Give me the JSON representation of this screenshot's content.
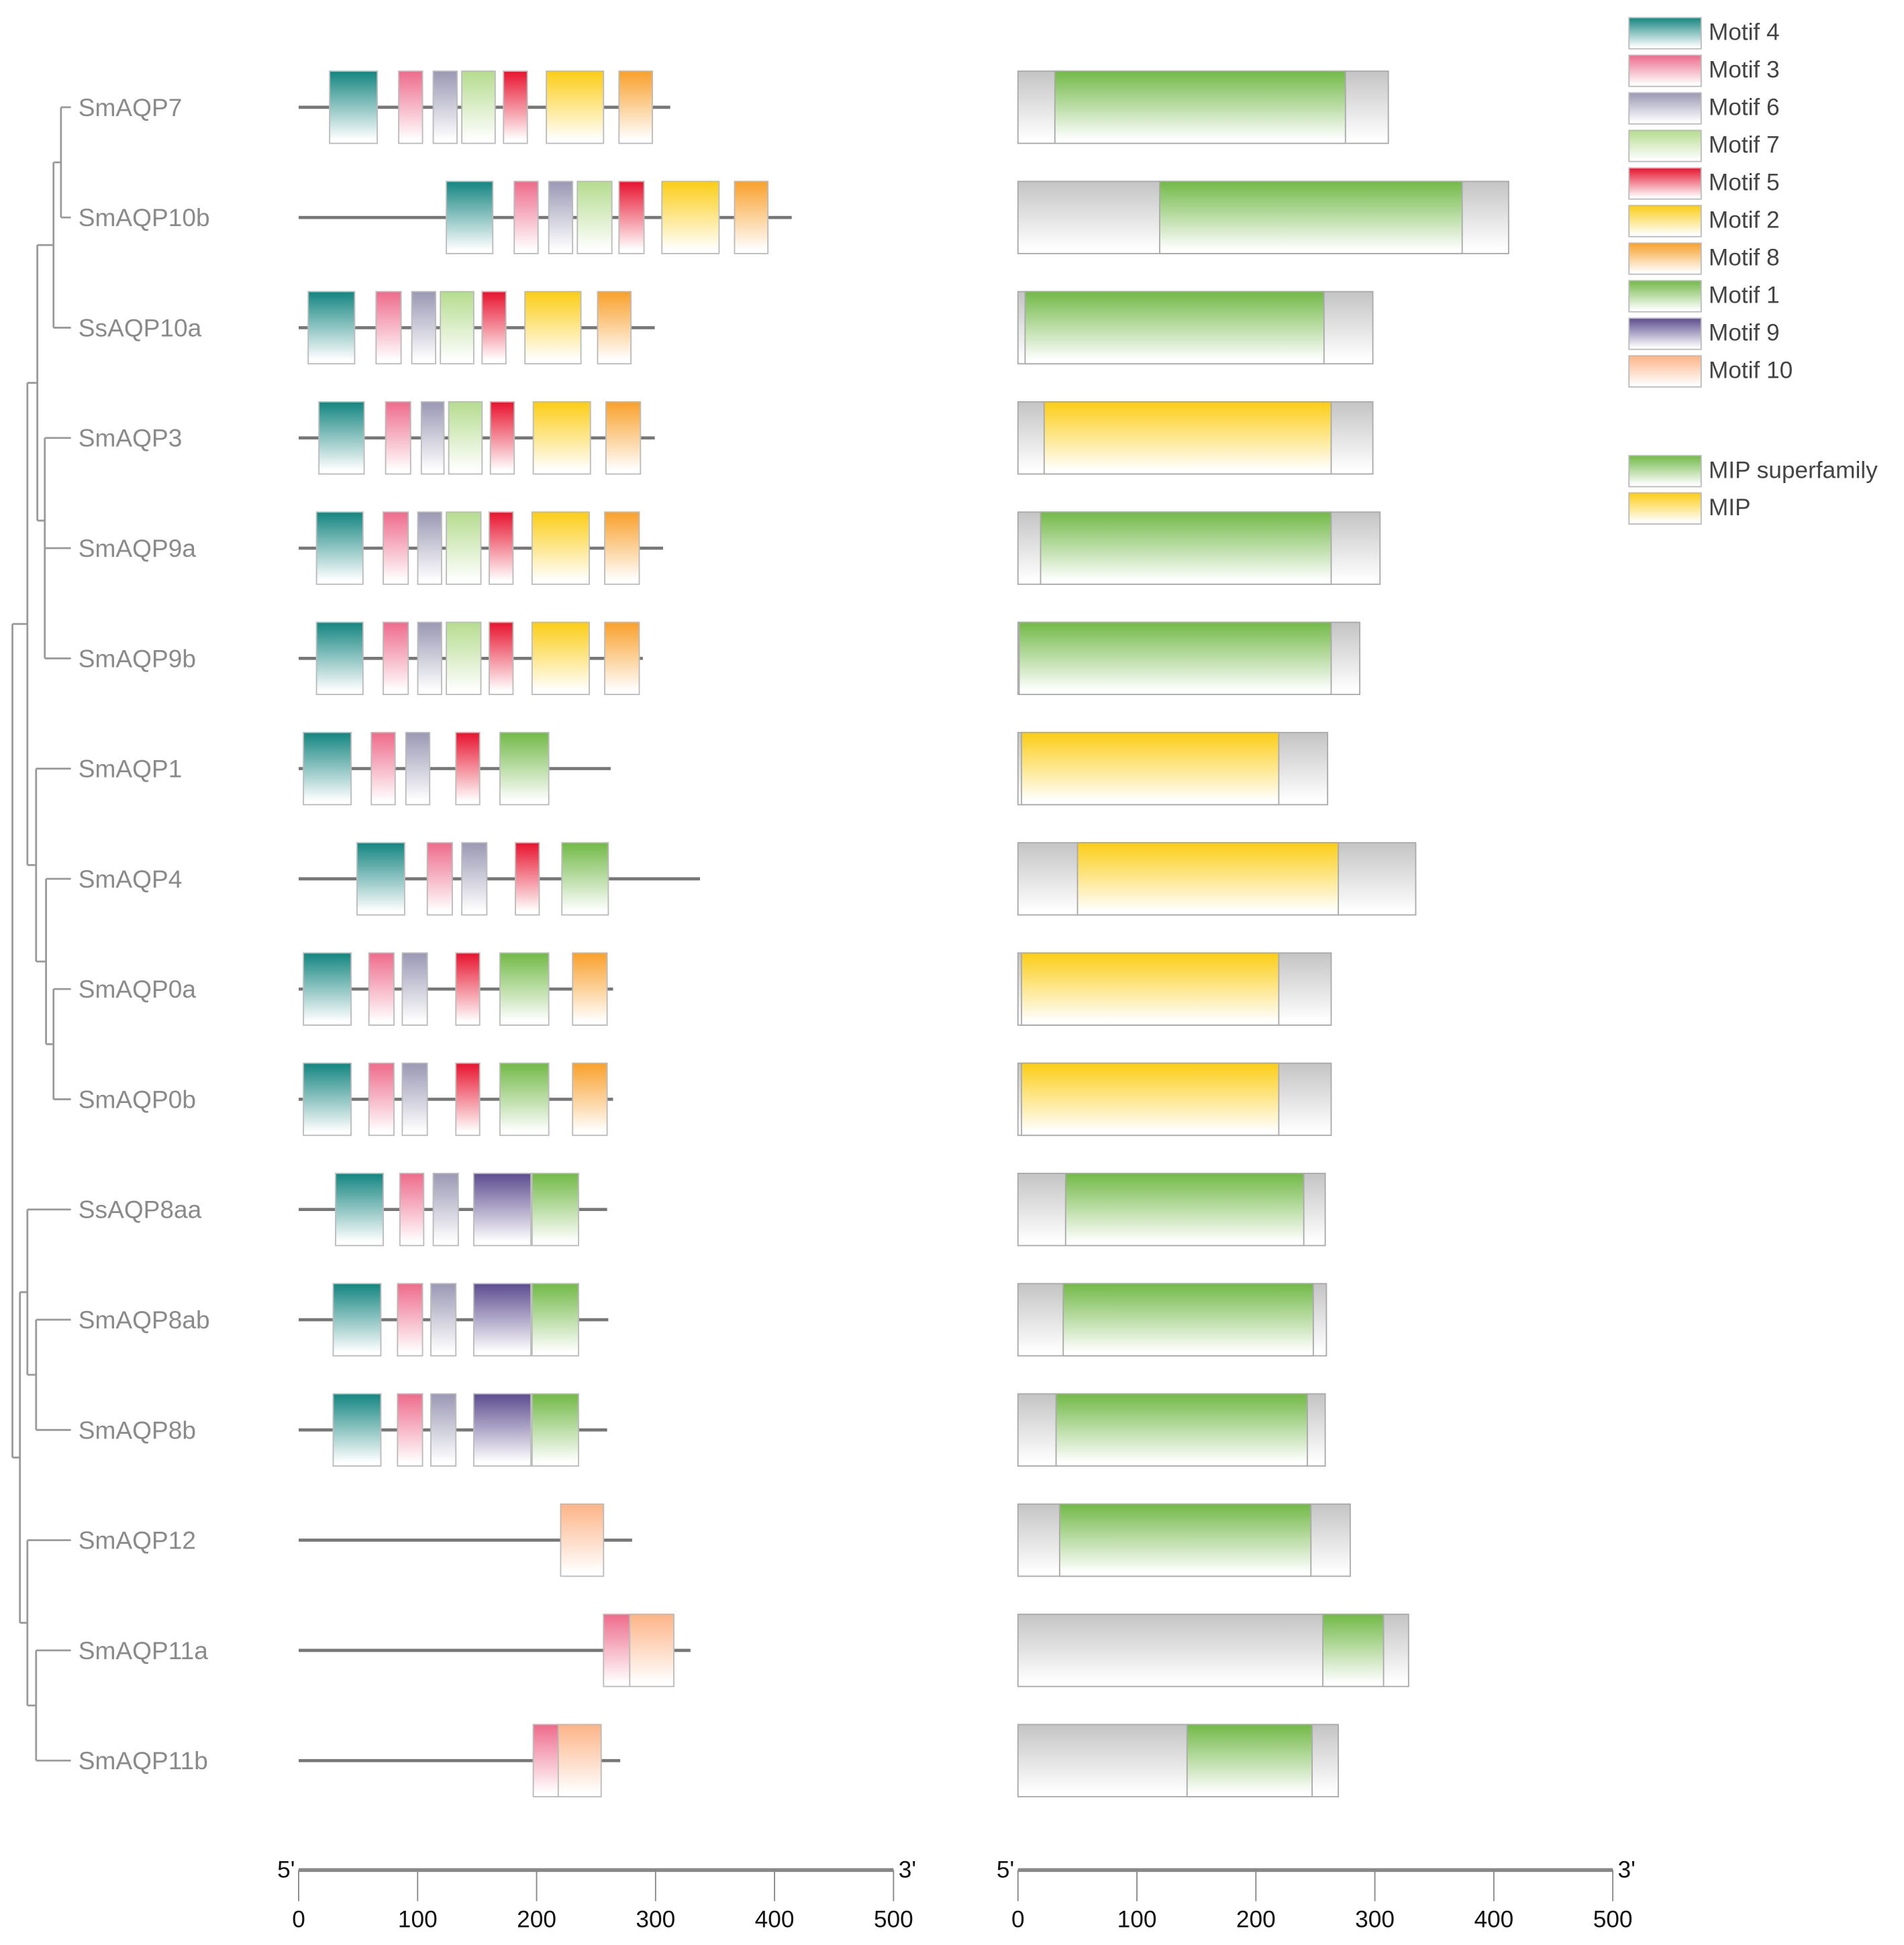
{
  "chart_data": {
    "type": "gene-structure",
    "panels": [
      {
        "name": "motif-panel",
        "axis": {
          "min": 0,
          "max": 500,
          "ticks": [
            0,
            100,
            200,
            300,
            400,
            500
          ],
          "start_label": "5'",
          "end_label": "3'"
        }
      },
      {
        "name": "domain-panel",
        "axis": {
          "min": 0,
          "max": 500,
          "ticks": [
            0,
            100,
            200,
            300,
            400,
            500
          ],
          "start_label": "5'",
          "end_label": "3'"
        }
      }
    ],
    "legend": {
      "motifs": [
        {
          "id": "M4",
          "label": "Motif 4",
          "color": "#138580"
        },
        {
          "id": "M3",
          "label": "Motif 3",
          "color": "#ee6b8b"
        },
        {
          "id": "M6",
          "label": "Motif 6",
          "color": "#9a98b4"
        },
        {
          "id": "M7",
          "label": "Motif 7",
          "color": "#b5dc8e"
        },
        {
          "id": "M5",
          "label": "Motif 5",
          "color": "#e8132e"
        },
        {
          "id": "M2",
          "label": "Motif 2",
          "color": "#fccd15"
        },
        {
          "id": "M8",
          "label": "Motif 8",
          "color": "#f9a02a"
        },
        {
          "id": "M1",
          "label": "Motif 1",
          "color": "#72b947"
        },
        {
          "id": "M9",
          "label": "Motif 9",
          "color": "#5c4c8f"
        },
        {
          "id": "M10",
          "label": "Motif 10",
          "color": "#fdb487"
        }
      ],
      "domains": [
        {
          "id": "SF",
          "label": "MIP superfamily",
          "color": "#72b947"
        },
        {
          "id": "MIP",
          "label": "MIP",
          "color": "#fccd15"
        }
      ]
    },
    "genes": [
      {
        "name": "SmAQP7",
        "length": 312,
        "motifs": [
          [
            "M4",
            26,
            66
          ],
          [
            "M3",
            84,
            104
          ],
          [
            "M6",
            113,
            133
          ],
          [
            "M7",
            137,
            165
          ],
          [
            "M5",
            172,
            192
          ],
          [
            "M2",
            208,
            256
          ],
          [
            "M8",
            269,
            297
          ]
        ],
        "protein_length": 311,
        "domains": [
          [
            "SF",
            31,
            275
          ]
        ]
      },
      {
        "name": "SmAQP10b",
        "length": 414,
        "motifs": [
          [
            "M4",
            124,
            163
          ],
          [
            "M3",
            181,
            201
          ],
          [
            "M6",
            210,
            230
          ],
          [
            "M7",
            234,
            263
          ],
          [
            "M5",
            269,
            290
          ],
          [
            "M2",
            305,
            353
          ],
          [
            "M8",
            366,
            394
          ]
        ],
        "protein_length": 412,
        "domains": [
          [
            "SF",
            119,
            373
          ]
        ]
      },
      {
        "name": "SsAQP10a",
        "length": 299,
        "motifs": [
          [
            "M4",
            8,
            47
          ],
          [
            "M3",
            65,
            86
          ],
          [
            "M6",
            95,
            115
          ],
          [
            "M7",
            119,
            147
          ],
          [
            "M5",
            154,
            174
          ],
          [
            "M2",
            190,
            237
          ],
          [
            "M8",
            251,
            279
          ]
        ],
        "protein_length": 298,
        "domains": [
          [
            "SF",
            6,
            257
          ]
        ]
      },
      {
        "name": "SmAQP3",
        "length": 299,
        "motifs": [
          [
            "M4",
            17,
            55
          ],
          [
            "M3",
            73,
            94
          ],
          [
            "M6",
            103,
            122
          ],
          [
            "M7",
            126,
            154
          ],
          [
            "M5",
            161,
            181
          ],
          [
            "M2",
            197,
            245
          ],
          [
            "M8",
            258,
            287
          ]
        ],
        "protein_length": 298,
        "domains": [
          [
            "MIP",
            22,
            263
          ]
        ]
      },
      {
        "name": "SmAQP9a",
        "length": 306,
        "motifs": [
          [
            "M4",
            15,
            54
          ],
          [
            "M3",
            71,
            92
          ],
          [
            "M6",
            100,
            120
          ],
          [
            "M7",
            124,
            153
          ],
          [
            "M5",
            160,
            180
          ],
          [
            "M2",
            196,
            244
          ],
          [
            "M8",
            257,
            286
          ]
        ],
        "protein_length": 304,
        "domains": [
          [
            "SF",
            19,
            263
          ]
        ]
      },
      {
        "name": "SmAQP9b",
        "length": 289,
        "motifs": [
          [
            "M4",
            15,
            54
          ],
          [
            "M3",
            71,
            92
          ],
          [
            "M6",
            100,
            120
          ],
          [
            "M7",
            124,
            153
          ],
          [
            "M5",
            160,
            180
          ],
          [
            "M2",
            196,
            244
          ],
          [
            "M8",
            257,
            286
          ]
        ],
        "protein_length": 287,
        "domains": [
          [
            "SF",
            1,
            263
          ]
        ]
      },
      {
        "name": "SmAQP1",
        "length": 262,
        "motifs": [
          [
            "M4",
            4,
            44
          ],
          [
            "M3",
            61,
            81
          ],
          [
            "M6",
            90,
            110
          ],
          [
            "M5",
            132,
            152
          ],
          [
            "M1",
            169,
            210
          ]
        ],
        "protein_length": 260,
        "domains": [
          [
            "MIP",
            3,
            219
          ]
        ]
      },
      {
        "name": "SmAQP4",
        "length": 337,
        "motifs": [
          [
            "M4",
            49,
            89
          ],
          [
            "M3",
            108,
            129
          ],
          [
            "M6",
            137,
            158
          ],
          [
            "M5",
            182,
            202
          ],
          [
            "M1",
            221,
            260
          ]
        ],
        "protein_length": 334,
        "domains": [
          [
            "MIP",
            50,
            269
          ]
        ]
      },
      {
        "name": "SmAQP0a",
        "length": 264,
        "motifs": [
          [
            "M4",
            4,
            44
          ],
          [
            "M3",
            59,
            80
          ],
          [
            "M6",
            87,
            108
          ],
          [
            "M5",
            132,
            152
          ],
          [
            "M1",
            169,
            210
          ],
          [
            "M8",
            230,
            259
          ]
        ],
        "protein_length": 263,
        "domains": [
          [
            "MIP",
            3,
            219
          ]
        ]
      },
      {
        "name": "SmAQP0b",
        "length": 264,
        "motifs": [
          [
            "M4",
            4,
            44
          ],
          [
            "M3",
            59,
            80
          ],
          [
            "M6",
            87,
            108
          ],
          [
            "M5",
            132,
            152
          ],
          [
            "M1",
            169,
            210
          ],
          [
            "M8",
            230,
            259
          ]
        ],
        "protein_length": 263,
        "domains": [
          [
            "MIP",
            3,
            219
          ]
        ]
      },
      {
        "name": "SsAQP8aa",
        "length": 259,
        "motifs": [
          [
            "M4",
            31,
            71
          ],
          [
            "M3",
            85,
            105
          ],
          [
            "M6",
            113,
            134
          ],
          [
            "M9",
            147,
            195
          ],
          [
            "M1",
            196,
            235
          ]
        ],
        "protein_length": 258,
        "domains": [
          [
            "SF",
            40,
            240
          ]
        ]
      },
      {
        "name": "SmAQP8ab",
        "length": 260,
        "motifs": [
          [
            "M4",
            29,
            69
          ],
          [
            "M3",
            83,
            104
          ],
          [
            "M6",
            111,
            132
          ],
          [
            "M9",
            147,
            195
          ],
          [
            "M1",
            196,
            235
          ]
        ],
        "protein_length": 259,
        "domains": [
          [
            "SF",
            38,
            248
          ]
        ]
      },
      {
        "name": "SmAQP8b",
        "length": 259,
        "motifs": [
          [
            "M4",
            29,
            69
          ],
          [
            "M3",
            83,
            104
          ],
          [
            "M6",
            111,
            132
          ],
          [
            "M9",
            147,
            195
          ],
          [
            "M1",
            196,
            235
          ]
        ],
        "protein_length": 258,
        "domains": [
          [
            "SF",
            32,
            243
          ]
        ]
      },
      {
        "name": "SmAQP12",
        "length": 280,
        "motifs": [
          [
            "M10",
            220,
            256
          ]
        ],
        "protein_length": 279,
        "domains": [
          [
            "SF",
            35,
            246
          ]
        ]
      },
      {
        "name": "SmAQP11a",
        "length": 329,
        "motifs": [
          [
            "M3",
            256,
            278
          ],
          [
            "M10",
            278,
            315
          ]
        ],
        "protein_length": 328,
        "domains": [
          [
            "SF",
            256,
            307
          ]
        ]
      },
      {
        "name": "SmAQP11b",
        "length": 270,
        "motifs": [
          [
            "M3",
            197,
            218
          ],
          [
            "M10",
            218,
            254
          ]
        ],
        "protein_length": 269,
        "domains": [
          [
            "SF",
            142,
            247
          ]
        ]
      }
    ]
  }
}
